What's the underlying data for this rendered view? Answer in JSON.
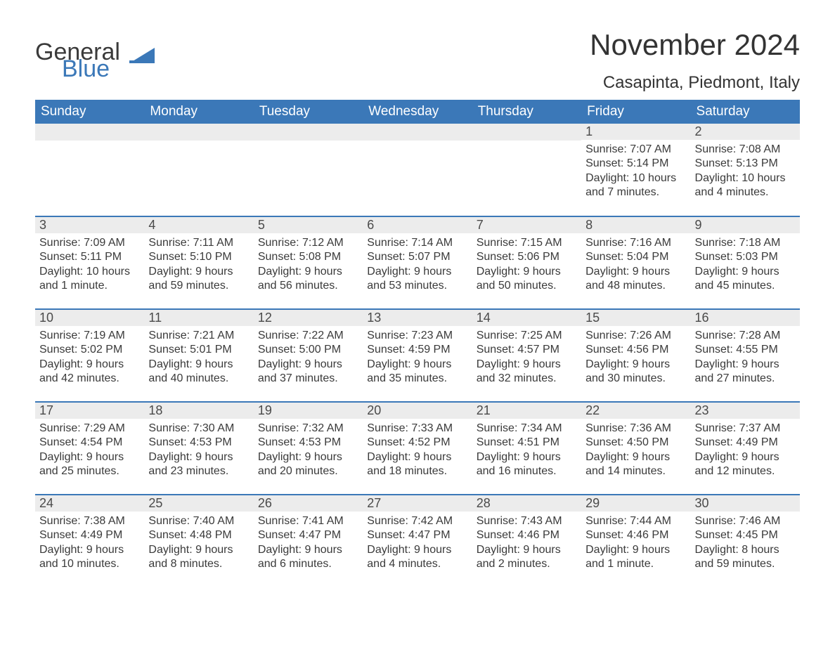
{
  "brand": {
    "text_general": "General",
    "text_blue": "Blue",
    "shape_color": "#3b78b8"
  },
  "colors": {
    "header_bg": "#3b78b8",
    "header_text": "#ffffff",
    "daybar_bg": "#ececec",
    "daybar_text": "#4a4a4a",
    "body_text": "#3a3a3a",
    "row_divider": "#3b78b8",
    "page_bg": "#ffffff"
  },
  "title": "November 2024",
  "location": "Casapinta, Piedmont, Italy",
  "weekdays": [
    "Sunday",
    "Monday",
    "Tuesday",
    "Wednesday",
    "Thursday",
    "Friday",
    "Saturday"
  ],
  "weeks": [
    [
      null,
      null,
      null,
      null,
      null,
      {
        "n": "1",
        "sr": "Sunrise: 7:07 AM",
        "ss": "Sunset: 5:14 PM",
        "dl": "Daylight: 10 hours and 7 minutes."
      },
      {
        "n": "2",
        "sr": "Sunrise: 7:08 AM",
        "ss": "Sunset: 5:13 PM",
        "dl": "Daylight: 10 hours and 4 minutes."
      }
    ],
    [
      {
        "n": "3",
        "sr": "Sunrise: 7:09 AM",
        "ss": "Sunset: 5:11 PM",
        "dl": "Daylight: 10 hours and 1 minute."
      },
      {
        "n": "4",
        "sr": "Sunrise: 7:11 AM",
        "ss": "Sunset: 5:10 PM",
        "dl": "Daylight: 9 hours and 59 minutes."
      },
      {
        "n": "5",
        "sr": "Sunrise: 7:12 AM",
        "ss": "Sunset: 5:08 PM",
        "dl": "Daylight: 9 hours and 56 minutes."
      },
      {
        "n": "6",
        "sr": "Sunrise: 7:14 AM",
        "ss": "Sunset: 5:07 PM",
        "dl": "Daylight: 9 hours and 53 minutes."
      },
      {
        "n": "7",
        "sr": "Sunrise: 7:15 AM",
        "ss": "Sunset: 5:06 PM",
        "dl": "Daylight: 9 hours and 50 minutes."
      },
      {
        "n": "8",
        "sr": "Sunrise: 7:16 AM",
        "ss": "Sunset: 5:04 PM",
        "dl": "Daylight: 9 hours and 48 minutes."
      },
      {
        "n": "9",
        "sr": "Sunrise: 7:18 AM",
        "ss": "Sunset: 5:03 PM",
        "dl": "Daylight: 9 hours and 45 minutes."
      }
    ],
    [
      {
        "n": "10",
        "sr": "Sunrise: 7:19 AM",
        "ss": "Sunset: 5:02 PM",
        "dl": "Daylight: 9 hours and 42 minutes."
      },
      {
        "n": "11",
        "sr": "Sunrise: 7:21 AM",
        "ss": "Sunset: 5:01 PM",
        "dl": "Daylight: 9 hours and 40 minutes."
      },
      {
        "n": "12",
        "sr": "Sunrise: 7:22 AM",
        "ss": "Sunset: 5:00 PM",
        "dl": "Daylight: 9 hours and 37 minutes."
      },
      {
        "n": "13",
        "sr": "Sunrise: 7:23 AM",
        "ss": "Sunset: 4:59 PM",
        "dl": "Daylight: 9 hours and 35 minutes."
      },
      {
        "n": "14",
        "sr": "Sunrise: 7:25 AM",
        "ss": "Sunset: 4:57 PM",
        "dl": "Daylight: 9 hours and 32 minutes."
      },
      {
        "n": "15",
        "sr": "Sunrise: 7:26 AM",
        "ss": "Sunset: 4:56 PM",
        "dl": "Daylight: 9 hours and 30 minutes."
      },
      {
        "n": "16",
        "sr": "Sunrise: 7:28 AM",
        "ss": "Sunset: 4:55 PM",
        "dl": "Daylight: 9 hours and 27 minutes."
      }
    ],
    [
      {
        "n": "17",
        "sr": "Sunrise: 7:29 AM",
        "ss": "Sunset: 4:54 PM",
        "dl": "Daylight: 9 hours and 25 minutes."
      },
      {
        "n": "18",
        "sr": "Sunrise: 7:30 AM",
        "ss": "Sunset: 4:53 PM",
        "dl": "Daylight: 9 hours and 23 minutes."
      },
      {
        "n": "19",
        "sr": "Sunrise: 7:32 AM",
        "ss": "Sunset: 4:53 PM",
        "dl": "Daylight: 9 hours and 20 minutes."
      },
      {
        "n": "20",
        "sr": "Sunrise: 7:33 AM",
        "ss": "Sunset: 4:52 PM",
        "dl": "Daylight: 9 hours and 18 minutes."
      },
      {
        "n": "21",
        "sr": "Sunrise: 7:34 AM",
        "ss": "Sunset: 4:51 PM",
        "dl": "Daylight: 9 hours and 16 minutes."
      },
      {
        "n": "22",
        "sr": "Sunrise: 7:36 AM",
        "ss": "Sunset: 4:50 PM",
        "dl": "Daylight: 9 hours and 14 minutes."
      },
      {
        "n": "23",
        "sr": "Sunrise: 7:37 AM",
        "ss": "Sunset: 4:49 PM",
        "dl": "Daylight: 9 hours and 12 minutes."
      }
    ],
    [
      {
        "n": "24",
        "sr": "Sunrise: 7:38 AM",
        "ss": "Sunset: 4:49 PM",
        "dl": "Daylight: 9 hours and 10 minutes."
      },
      {
        "n": "25",
        "sr": "Sunrise: 7:40 AM",
        "ss": "Sunset: 4:48 PM",
        "dl": "Daylight: 9 hours and 8 minutes."
      },
      {
        "n": "26",
        "sr": "Sunrise: 7:41 AM",
        "ss": "Sunset: 4:47 PM",
        "dl": "Daylight: 9 hours and 6 minutes."
      },
      {
        "n": "27",
        "sr": "Sunrise: 7:42 AM",
        "ss": "Sunset: 4:47 PM",
        "dl": "Daylight: 9 hours and 4 minutes."
      },
      {
        "n": "28",
        "sr": "Sunrise: 7:43 AM",
        "ss": "Sunset: 4:46 PM",
        "dl": "Daylight: 9 hours and 2 minutes."
      },
      {
        "n": "29",
        "sr": "Sunrise: 7:44 AM",
        "ss": "Sunset: 4:46 PM",
        "dl": "Daylight: 9 hours and 1 minute."
      },
      {
        "n": "30",
        "sr": "Sunrise: 7:46 AM",
        "ss": "Sunset: 4:45 PM",
        "dl": "Daylight: 8 hours and 59 minutes."
      }
    ]
  ]
}
